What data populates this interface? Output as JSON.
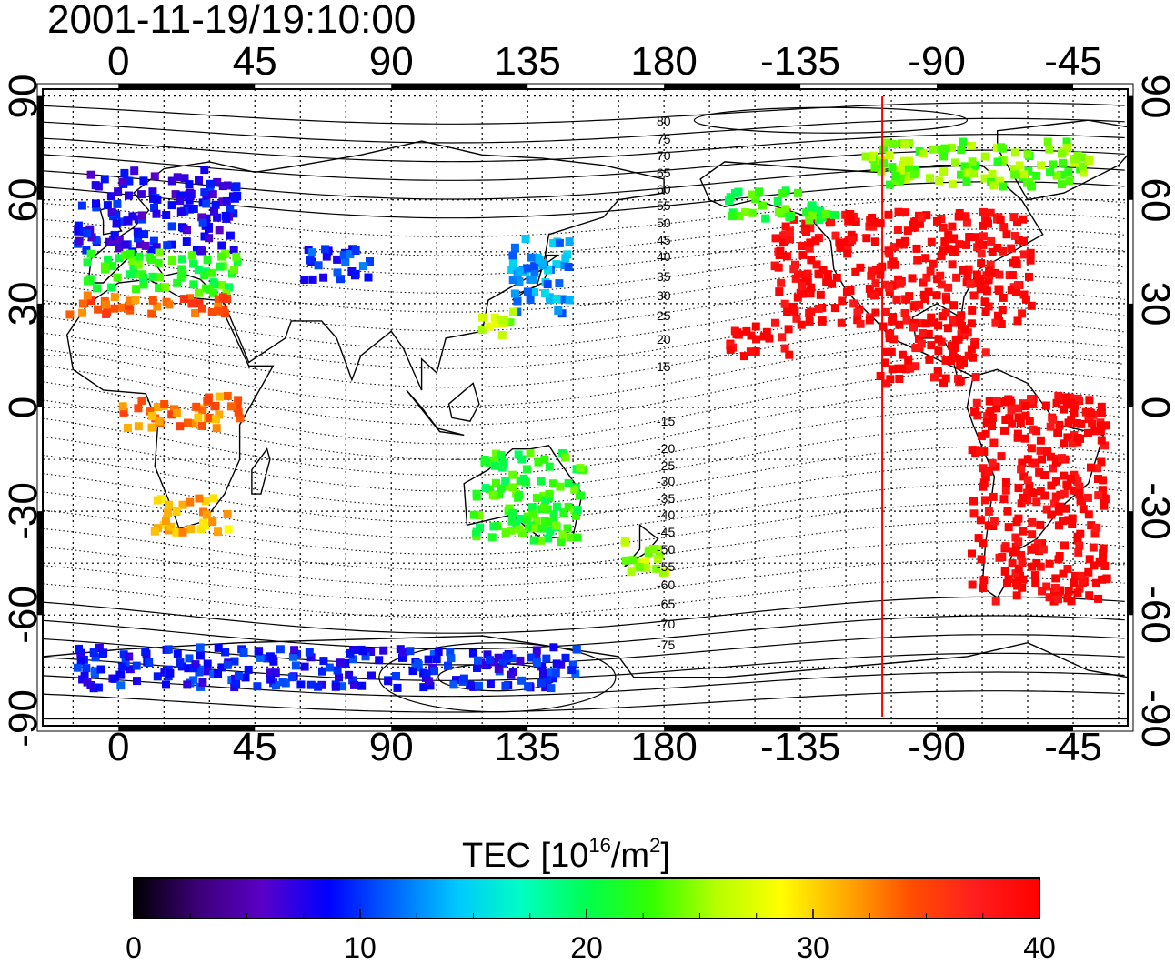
{
  "timestamp": "2001-11-19/19:10:00",
  "map": {
    "lon_ticks": [
      "0",
      "45",
      "90",
      "135",
      "180",
      "-135",
      "-90",
      "-45"
    ],
    "lon_tick_values": [
      0,
      45,
      90,
      135,
      180,
      225,
      270,
      315
    ],
    "lat_ticks": [
      "90",
      "60",
      "30",
      "0",
      "-30",
      "-60",
      "-90"
    ],
    "lat_tick_values": [
      90,
      60,
      30,
      0,
      -30,
      -60,
      -90
    ],
    "lon_range": [
      -25,
      333
    ],
    "lat_range": [
      -92,
      92
    ],
    "grid_spacing_deg": 15,
    "noon_meridian_lon": 252,
    "noon_line_color": "#ff0000",
    "mag_lat_labels_north": [
      "80",
      "75",
      "70",
      "65",
      "60",
      "55",
      "50",
      "45",
      "40",
      "35",
      "30",
      "25",
      "20",
      "15"
    ],
    "mag_lat_labels_south": [
      "-15",
      "-20",
      "-25",
      "-30",
      "-35",
      "-40",
      "-45",
      "-50",
      "-55",
      "-60",
      "-65",
      "-70",
      "-75"
    ]
  },
  "colorbar": {
    "title_main": "TEC  [10",
    "title_exp1": "16",
    "title_mid": "/m",
    "title_exp2": "2",
    "title_end": "]",
    "ticks": [
      "0",
      "10",
      "20",
      "30",
      "40"
    ],
    "tick_values": [
      0,
      10,
      20,
      30,
      40
    ],
    "range": [
      0,
      40
    ],
    "colors": [
      "#000000",
      "#3c0078",
      "#5a00c8",
      "#0000ff",
      "#0064ff",
      "#00c8ff",
      "#00ffc0",
      "#00ff50",
      "#32ff00",
      "#b4ff00",
      "#ffff00",
      "#ffaa00",
      "#ff5000",
      "#ff1e1e",
      "#ff0000"
    ]
  },
  "tec_regions": [
    {
      "lon0": -15,
      "lon1": 38,
      "lat0": 46,
      "lat1": 70,
      "tec": 8
    },
    {
      "lon0": -12,
      "lon1": 38,
      "lat0": 34,
      "lat1": 46,
      "tec": 22
    },
    {
      "lon0": -18,
      "lon1": 38,
      "lat0": 28,
      "lat1": 34,
      "tec": 34
    },
    {
      "lon0": 60,
      "lon1": 83,
      "lat0": 38,
      "lat1": 48,
      "tec": 10
    },
    {
      "lon0": 128,
      "lon1": 148,
      "lat0": 28,
      "lat1": 50,
      "tec": 13
    },
    {
      "lon0": 118,
      "lon1": 130,
      "lat0": 22,
      "lat1": 30,
      "tec": 26
    },
    {
      "lon0": 215,
      "lon1": 300,
      "lat0": 25,
      "lat1": 58,
      "tec": 40
    },
    {
      "lon0": 250,
      "lon1": 285,
      "lat0": 8,
      "lat1": 25,
      "tec": 40
    },
    {
      "lon0": 280,
      "lon1": 325,
      "lat0": -55,
      "lat1": 5,
      "tec": 40
    },
    {
      "lon0": 200,
      "lon1": 235,
      "lat0": 55,
      "lat1": 64,
      "tec": 22
    },
    {
      "lon0": 245,
      "lon1": 320,
      "lat0": 65,
      "lat1": 78,
      "tec": 24
    },
    {
      "lon0": 115,
      "lon1": 152,
      "lat0": -38,
      "lat1": -12,
      "tec": 22
    },
    {
      "lon0": 165,
      "lon1": 180,
      "lat0": -48,
      "lat1": -36,
      "tec": 26
    },
    {
      "lon0": 10,
      "lon1": 35,
      "lat0": -35,
      "lat1": -25,
      "tec": 31
    },
    {
      "lon0": 0,
      "lon1": 40,
      "lat0": -5,
      "lat1": 5,
      "tec": 33
    },
    {
      "lon0": -15,
      "lon1": 150,
      "lat0": -80,
      "lat1": -68,
      "tec": 9
    },
    {
      "lon0": 200,
      "lon1": 220,
      "lat0": 15,
      "lat1": 25,
      "tec": 40
    }
  ]
}
